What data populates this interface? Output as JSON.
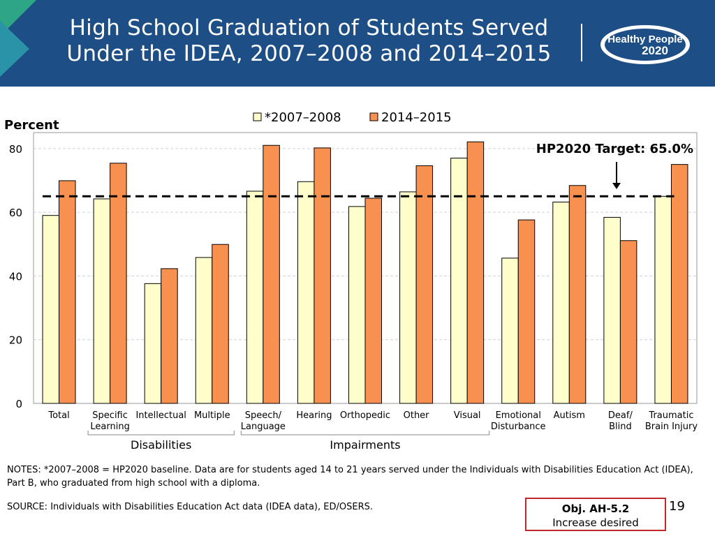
{
  "header": {
    "title_line1": "High School Graduation of Students Served",
    "title_line2": "Under the IDEA, 2007–2008 and 2014–2015",
    "logo_line1": "Healthy People",
    "logo_line2": "2020"
  },
  "chart_data": {
    "type": "bar",
    "ylabel": "Percent",
    "ylim": [
      0,
      85
    ],
    "yticks": [
      0,
      20,
      40,
      60,
      80
    ],
    "grid": true,
    "legend_position": "top",
    "categories": [
      [
        "Total"
      ],
      [
        "Specific",
        "Learning"
      ],
      [
        "Intellectual"
      ],
      [
        "Multiple"
      ],
      [
        "Speech/",
        "Language"
      ],
      [
        "Hearing"
      ],
      [
        "Orthopedic"
      ],
      [
        "Other"
      ],
      [
        "Visual"
      ],
      [
        "Emotional",
        "Disturbance"
      ],
      [
        "Autism"
      ],
      [
        "Deaf/",
        "Blind"
      ],
      [
        "Traumatic",
        "Brain Injury"
      ]
    ],
    "series": [
      {
        "name": "*2007–2008",
        "color": "#ffffcc",
        "values": [
          59.0,
          64.2,
          37.6,
          45.8,
          66.6,
          69.6,
          61.8,
          66.4,
          77.0,
          45.6,
          63.2,
          58.4,
          65.0
        ]
      },
      {
        "name": "2014–2015",
        "color": "#f8904f",
        "values": [
          69.9,
          75.4,
          42.3,
          49.9,
          81.0,
          80.2,
          64.4,
          74.6,
          82.1,
          57.6,
          68.4,
          51.1,
          75.0
        ]
      }
    ],
    "target": {
      "value": 65.0,
      "label": "HP2020 Target: 65.0%"
    },
    "groups": [
      {
        "label": "Disabilities",
        "first": 1,
        "last": 3
      },
      {
        "label": "Impairments",
        "first": 4,
        "last": 8
      }
    ]
  },
  "notes": "NOTES: *2007–2008 = HP2020 baseline. Data are for students aged 14 to 21 years served under the Individuals with Disabilities Education Act (IDEA), Part B, who graduated from high school with a diploma.",
  "source": "SOURCE: Individuals with Disabilities Education Act data (IDEA data), ED/OSERS.",
  "objective": {
    "id": "Obj. AH-5.2",
    "status": "Increase desired"
  },
  "page_number": "19"
}
